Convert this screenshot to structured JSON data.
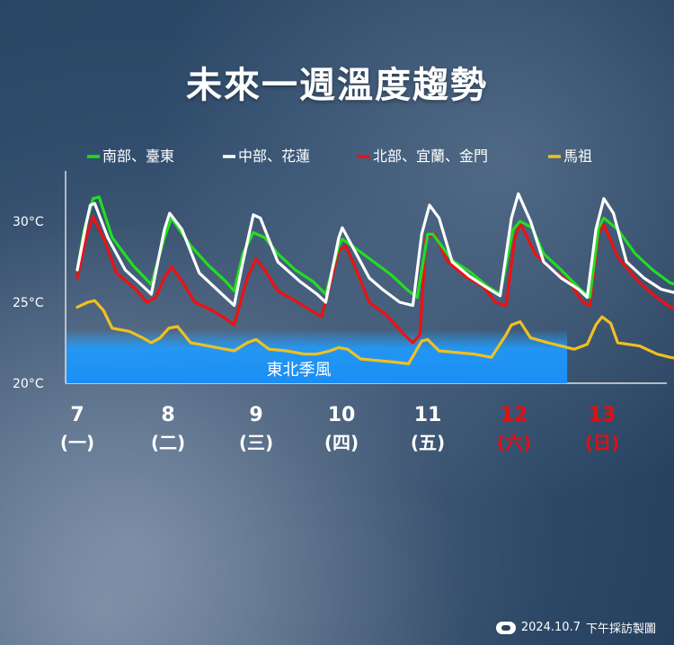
{
  "title": "未來一週溫度趨勢",
  "footer": {
    "date": "2024.10.7",
    "credit": "下午採訪製圖"
  },
  "chart_data": {
    "type": "line",
    "title": "未來一週溫度趨勢",
    "ylim": [
      20,
      33
    ],
    "yticks": [
      {
        "value": 30,
        "label": "30°C"
      },
      {
        "value": 25,
        "label": "25°C"
      },
      {
        "value": 20,
        "label": "20°C"
      }
    ],
    "days": [
      {
        "date": "7",
        "weekday": "(一)",
        "color": "#ffffff"
      },
      {
        "date": "8",
        "weekday": "(二)",
        "color": "#ffffff"
      },
      {
        "date": "9",
        "weekday": "(三)",
        "color": "#ffffff"
      },
      {
        "date": "10",
        "weekday": "(四)",
        "color": "#ffffff"
      },
      {
        "date": "11",
        "weekday": "(五)",
        "color": "#ffffff"
      },
      {
        "date": "12",
        "weekday": "(六)",
        "color": "#e01010"
      },
      {
        "date": "13",
        "weekday": "(日)",
        "color": "#e01010"
      }
    ],
    "annotation": {
      "label": "東北季風",
      "from_day": 0,
      "to_day": 5.62,
      "from_value": 20,
      "to_value": 23.3
    },
    "series": [
      {
        "name": "南部、臺東",
        "color": "#22dd22",
        "values": [
          [
            0,
            27.0
          ],
          [
            0.08,
            29.5
          ],
          [
            0.18,
            31.4
          ],
          [
            0.25,
            31.5
          ],
          [
            0.4,
            29.0
          ],
          [
            0.65,
            27.2
          ],
          [
            0.85,
            26.1
          ],
          [
            1.0,
            29.0
          ],
          [
            1.08,
            30.2
          ],
          [
            1.3,
            28.5
          ],
          [
            1.5,
            27.3
          ],
          [
            1.7,
            26.3
          ],
          [
            1.8,
            25.7
          ],
          [
            1.9,
            28.0
          ],
          [
            2.02,
            29.3
          ],
          [
            2.15,
            29.0
          ],
          [
            2.3,
            28.0
          ],
          [
            2.5,
            27.0
          ],
          [
            2.7,
            26.3
          ],
          [
            2.85,
            25.5
          ],
          [
            3.0,
            28.5
          ],
          [
            3.04,
            28.9
          ],
          [
            3.2,
            28.3
          ],
          [
            3.4,
            27.5
          ],
          [
            3.6,
            26.7
          ],
          [
            3.8,
            25.7
          ],
          [
            3.9,
            25.3
          ],
          [
            4.02,
            29.2
          ],
          [
            4.08,
            29.2
          ],
          [
            4.3,
            27.6
          ],
          [
            4.5,
            26.9
          ],
          [
            4.7,
            26.0
          ],
          [
            4.85,
            25.5
          ],
          [
            5.0,
            29.5
          ],
          [
            5.08,
            30.0
          ],
          [
            5.22,
            29.6
          ],
          [
            5.35,
            28.0
          ],
          [
            5.55,
            27.0
          ],
          [
            5.75,
            25.9
          ],
          [
            5.88,
            25.3
          ],
          [
            5.98,
            29.6
          ],
          [
            6.04,
            30.2
          ],
          [
            6.2,
            29.5
          ],
          [
            6.4,
            28.0
          ],
          [
            6.6,
            27.0
          ],
          [
            6.8,
            26.2
          ],
          [
            6.92,
            26.0
          ]
        ]
      },
      {
        "name": "中部、花蓮",
        "color": "#ffffff",
        "values": [
          [
            0,
            27.0
          ],
          [
            0.1,
            29.8
          ],
          [
            0.15,
            31.0
          ],
          [
            0.2,
            31.1
          ],
          [
            0.35,
            29.0
          ],
          [
            0.55,
            27.0
          ],
          [
            0.75,
            26.0
          ],
          [
            0.85,
            25.5
          ],
          [
            1.0,
            29.5
          ],
          [
            1.06,
            30.5
          ],
          [
            1.2,
            29.5
          ],
          [
            1.4,
            26.8
          ],
          [
            1.6,
            25.8
          ],
          [
            1.8,
            24.8
          ],
          [
            1.9,
            27.5
          ],
          [
            2.02,
            30.4
          ],
          [
            2.1,
            30.2
          ],
          [
            2.3,
            27.5
          ],
          [
            2.55,
            26.3
          ],
          [
            2.75,
            25.5
          ],
          [
            2.85,
            25.0
          ],
          [
            3.0,
            29.0
          ],
          [
            3.04,
            29.6
          ],
          [
            3.2,
            28.0
          ],
          [
            3.35,
            26.5
          ],
          [
            3.5,
            25.8
          ],
          [
            3.7,
            25.0
          ],
          [
            3.85,
            24.8
          ],
          [
            3.95,
            29.2
          ],
          [
            4.04,
            31.0
          ],
          [
            4.15,
            30.2
          ],
          [
            4.3,
            27.5
          ],
          [
            4.5,
            26.6
          ],
          [
            4.7,
            25.9
          ],
          [
            4.85,
            25.4
          ],
          [
            4.98,
            30.2
          ],
          [
            5.06,
            31.7
          ],
          [
            5.2,
            30.0
          ],
          [
            5.35,
            27.5
          ],
          [
            5.55,
            26.5
          ],
          [
            5.75,
            25.8
          ],
          [
            5.85,
            25.3
          ],
          [
            5.95,
            29.5
          ],
          [
            6.04,
            31.4
          ],
          [
            6.15,
            30.5
          ],
          [
            6.3,
            27.5
          ],
          [
            6.5,
            26.5
          ],
          [
            6.7,
            25.8
          ],
          [
            6.92,
            25.5
          ]
        ]
      },
      {
        "name": "北部、宜蘭、金門",
        "color": "#ee1111",
        "values": [
          [
            0,
            26.5
          ],
          [
            0.1,
            29.0
          ],
          [
            0.18,
            30.3
          ],
          [
            0.3,
            29.0
          ],
          [
            0.45,
            26.8
          ],
          [
            0.65,
            25.9
          ],
          [
            0.8,
            25.0
          ],
          [
            0.9,
            25.3
          ],
          [
            1.0,
            26.5
          ],
          [
            1.08,
            27.2
          ],
          [
            1.2,
            26.3
          ],
          [
            1.35,
            25.0
          ],
          [
            1.55,
            24.5
          ],
          [
            1.7,
            24.0
          ],
          [
            1.8,
            23.6
          ],
          [
            1.95,
            26.5
          ],
          [
            2.05,
            27.7
          ],
          [
            2.15,
            27.0
          ],
          [
            2.3,
            25.7
          ],
          [
            2.5,
            25.1
          ],
          [
            2.65,
            24.6
          ],
          [
            2.8,
            24.1
          ],
          [
            2.92,
            26.5
          ],
          [
            3.0,
            28.2
          ],
          [
            3.08,
            28.5
          ],
          [
            3.2,
            27.0
          ],
          [
            3.35,
            25.0
          ],
          [
            3.55,
            24.2
          ],
          [
            3.75,
            23.0
          ],
          [
            3.85,
            22.5
          ],
          [
            3.93,
            23.0
          ],
          [
            4.0,
            29.0
          ],
          [
            4.1,
            29.2
          ],
          [
            4.25,
            27.5
          ],
          [
            4.45,
            26.6
          ],
          [
            4.65,
            26.0
          ],
          [
            4.8,
            25.0
          ],
          [
            4.92,
            24.8
          ],
          [
            5.02,
            29.0
          ],
          [
            5.08,
            29.9
          ],
          [
            5.25,
            28.0
          ],
          [
            5.45,
            27.0
          ],
          [
            5.65,
            26.2
          ],
          [
            5.8,
            25.0
          ],
          [
            5.88,
            24.8
          ],
          [
            5.98,
            29.3
          ],
          [
            6.04,
            29.8
          ],
          [
            6.2,
            27.8
          ],
          [
            6.4,
            26.5
          ],
          [
            6.6,
            25.5
          ],
          [
            6.8,
            24.7
          ],
          [
            6.92,
            24.5
          ]
        ]
      },
      {
        "name": "馬祖",
        "color": "#f0c020",
        "values": [
          [
            0,
            24.7
          ],
          [
            0.12,
            25.0
          ],
          [
            0.2,
            25.1
          ],
          [
            0.3,
            24.5
          ],
          [
            0.4,
            23.4
          ],
          [
            0.6,
            23.2
          ],
          [
            0.75,
            22.8
          ],
          [
            0.85,
            22.5
          ],
          [
            0.95,
            22.8
          ],
          [
            1.05,
            23.4
          ],
          [
            1.15,
            23.5
          ],
          [
            1.3,
            22.5
          ],
          [
            1.5,
            22.3
          ],
          [
            1.7,
            22.1
          ],
          [
            1.8,
            22.0
          ],
          [
            1.95,
            22.5
          ],
          [
            2.05,
            22.7
          ],
          [
            2.2,
            22.1
          ],
          [
            2.4,
            22.0
          ],
          [
            2.6,
            21.8
          ],
          [
            2.75,
            21.8
          ],
          [
            2.9,
            22.0
          ],
          [
            3.0,
            22.2
          ],
          [
            3.1,
            22.1
          ],
          [
            3.25,
            21.5
          ],
          [
            3.45,
            21.4
          ],
          [
            3.65,
            21.3
          ],
          [
            3.8,
            21.2
          ],
          [
            3.95,
            22.6
          ],
          [
            4.02,
            22.7
          ],
          [
            4.15,
            22.0
          ],
          [
            4.35,
            21.9
          ],
          [
            4.55,
            21.8
          ],
          [
            4.75,
            21.6
          ],
          [
            4.92,
            23.0
          ],
          [
            4.98,
            23.6
          ],
          [
            5.08,
            23.8
          ],
          [
            5.2,
            22.8
          ],
          [
            5.4,
            22.5
          ],
          [
            5.55,
            22.3
          ],
          [
            5.7,
            22.1
          ],
          [
            5.85,
            22.4
          ],
          [
            5.95,
            23.6
          ],
          [
            6.02,
            24.1
          ],
          [
            6.12,
            23.7
          ],
          [
            6.2,
            22.5
          ],
          [
            6.45,
            22.3
          ],
          [
            6.65,
            21.8
          ],
          [
            6.8,
            21.6
          ],
          [
            6.92,
            21.5
          ]
        ]
      }
    ]
  }
}
